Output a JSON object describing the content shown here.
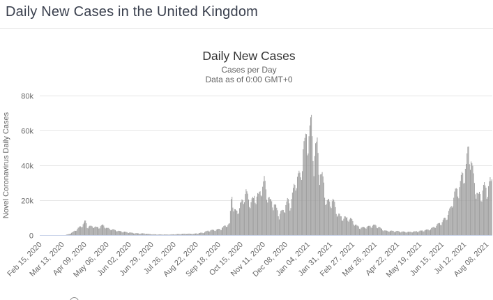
{
  "page": {
    "title": "Daily New Cases in the United Kingdom"
  },
  "chart": {
    "title": "Daily New Cases",
    "subtitle1": "Cases per Day",
    "subtitle2": "Data as of 0:00 GMT+0",
    "y_axis_title": "Novel Coronavirus Daily Cases"
  },
  "colors": {
    "page_title": "#393f4d",
    "chart_title": "#333333",
    "subtitle": "#666666",
    "tick_label": "#666666",
    "gridline": "#e6e6e6",
    "axis_line": "#ccd6eb",
    "bar": "#9c9c9c",
    "divider": "#e6e6e6"
  },
  "chart_data": {
    "type": "bar",
    "title": "Daily New Cases",
    "subtitle": [
      "Cases per Day",
      "Data as of 0:00 GMT+0"
    ],
    "ylabel": "Novel Coronavirus Daily Cases",
    "xlabel": "",
    "ylim": [
      0,
      80000
    ],
    "grid": "horizontal",
    "legend": "none",
    "bar_color": "#9c9c9c",
    "start_date": "Feb 15, 2020",
    "n_days": 547,
    "x_tick_interval_days": 27,
    "x_tick_labels": [
      "Feb 15, 2020",
      "Mar 13, 2020",
      "Apr 09, 2020",
      "May 06, 2020",
      "Jun 02, 2020",
      "Jun 29, 2020",
      "Jul 26, 2020",
      "Aug 22, 2020",
      "Sep 18, 2020",
      "Oct 15, 2020",
      "Nov 11, 2020",
      "Dec 08, 2020",
      "Jan 04, 2021",
      "Jan 31, 2021",
      "Feb 27, 2021",
      "Mar 26, 2021",
      "Apr 22, 2021",
      "May 19, 2021",
      "Jun 15, 2021",
      "Jul 12, 2021",
      "Aug 08, 2021"
    ],
    "y_ticks": [
      {
        "value": 0,
        "label": "0"
      },
      {
        "value": 20000,
        "label": "20k"
      },
      {
        "value": 40000,
        "label": "40k"
      },
      {
        "value": 60000,
        "label": "60k"
      },
      {
        "value": 80000,
        "label": "80k"
      }
    ],
    "daily_series_keypoints": [
      [
        0,
        0
      ],
      [
        20,
        10
      ],
      [
        29,
        60
      ],
      [
        34,
        700
      ],
      [
        40,
        2100
      ],
      [
        46,
        4300
      ],
      [
        50,
        5900
      ],
      [
        55,
        8700
      ],
      [
        57,
        5300
      ],
      [
        63,
        5500
      ],
      [
        70,
        4900
      ],
      [
        76,
        6200
      ],
      [
        81,
        4400
      ],
      [
        88,
        3600
      ],
      [
        96,
        2600
      ],
      [
        106,
        1900
      ],
      [
        116,
        1300
      ],
      [
        126,
        1200
      ],
      [
        136,
        700
      ],
      [
        146,
        600
      ],
      [
        156,
        580
      ],
      [
        166,
        800
      ],
      [
        176,
        1060
      ],
      [
        186,
        1000
      ],
      [
        197,
        1700
      ],
      [
        204,
        3000
      ],
      [
        211,
        3300
      ],
      [
        218,
        3900
      ],
      [
        224,
        6000
      ],
      [
        229,
        7000
      ],
      [
        232,
        28000
      ],
      [
        234,
        14500
      ],
      [
        238,
        15200
      ],
      [
        243,
        19000
      ],
      [
        249,
        26700
      ],
      [
        253,
        19800
      ],
      [
        260,
        23300
      ],
      [
        264,
        24100
      ],
      [
        271,
        33500
      ],
      [
        274,
        25000
      ],
      [
        279,
        20300
      ],
      [
        284,
        18200
      ],
      [
        289,
        12300
      ],
      [
        294,
        15500
      ],
      [
        299,
        21000
      ],
      [
        302,
        18400
      ],
      [
        307,
        28500
      ],
      [
        311,
        36800
      ],
      [
        315,
        34700
      ],
      [
        318,
        53100
      ],
      [
        320,
        55900
      ],
      [
        322,
        57700
      ],
      [
        325,
        60900
      ],
      [
        328,
        68100
      ],
      [
        331,
        46200
      ],
      [
        335,
        55800
      ],
      [
        338,
        37500
      ],
      [
        342,
        33600
      ],
      [
        346,
        20100
      ],
      [
        351,
        21100
      ],
      [
        355,
        20600
      ],
      [
        360,
        12400
      ],
      [
        365,
        10900
      ],
      [
        371,
        10400
      ],
      [
        376,
        9900
      ],
      [
        381,
        6400
      ],
      [
        387,
        4700
      ],
      [
        393,
        5100
      ],
      [
        399,
        5600
      ],
      [
        405,
        6200
      ],
      [
        411,
        4500
      ],
      [
        417,
        2800
      ],
      [
        424,
        2700
      ],
      [
        431,
        2500
      ],
      [
        438,
        2300
      ],
      [
        445,
        2100
      ],
      [
        452,
        2300
      ],
      [
        459,
        2700
      ],
      [
        466,
        3200
      ],
      [
        472,
        3900
      ],
      [
        478,
        5700
      ],
      [
        484,
        7700
      ],
      [
        490,
        10300
      ],
      [
        496,
        15800
      ],
      [
        501,
        26100
      ],
      [
        506,
        27300
      ],
      [
        510,
        35700
      ],
      [
        515,
        42300
      ],
      [
        518,
        54700
      ],
      [
        521,
        46600
      ],
      [
        525,
        31800
      ],
      [
        529,
        23900
      ],
      [
        533,
        24500
      ],
      [
        537,
        30200
      ],
      [
        540,
        27400
      ],
      [
        544,
        33000
      ],
      [
        546,
        32000
      ]
    ],
    "weekly_pattern_start_sat": [
      0.97,
      0.8,
      0.76,
      0.93,
      1.0,
      1.02,
      1.0
    ]
  }
}
